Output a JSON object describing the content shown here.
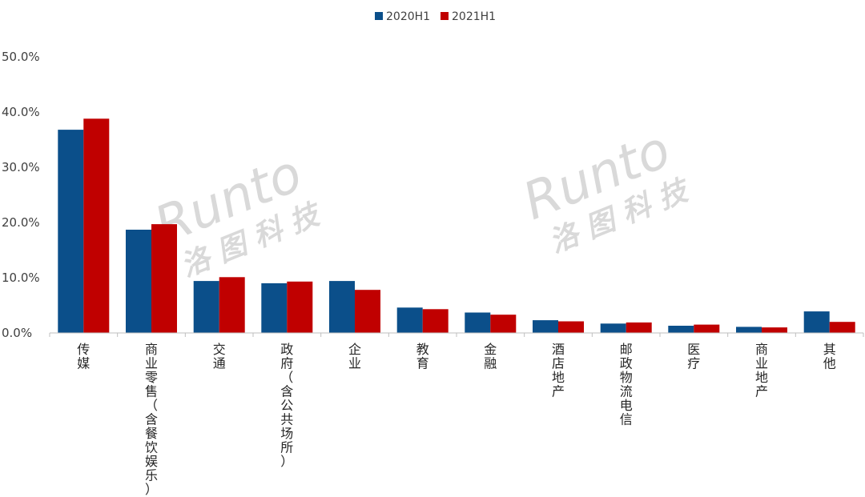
{
  "chart_data": {
    "type": "bar",
    "categories": [
      "传媒",
      "商业零售（含餐饮娱乐）",
      "交通",
      "政府（含公共场所）",
      "企业",
      "教育",
      "金融",
      "酒店地产",
      "邮政物流电信",
      "医疗",
      "商业地产",
      "其他"
    ],
    "series": [
      {
        "name": "2020H1",
        "color": "#0b4f8a",
        "values": [
          36.8,
          18.7,
          9.4,
          9.0,
          9.4,
          4.6,
          3.7,
          2.3,
          1.7,
          1.3,
          1.1,
          3.9
        ]
      },
      {
        "name": "2021H1",
        "color": "#c00000",
        "values": [
          38.8,
          19.7,
          10.1,
          9.3,
          7.8,
          4.3,
          3.3,
          2.1,
          1.9,
          1.5,
          1.0,
          2.0
        ]
      }
    ],
    "yticks": [
      "0.0%",
      "10.0%",
      "20.0%",
      "30.0%",
      "40.0%",
      "50.0%"
    ],
    "ylim": [
      0,
      50
    ],
    "legend_position": "top-center",
    "grid": false
  },
  "watermarks": [
    {
      "latin": "Runto",
      "cjk": "洛 图 科 技"
    },
    {
      "latin": "Runto",
      "cjk": "洛 图 科 技"
    }
  ]
}
